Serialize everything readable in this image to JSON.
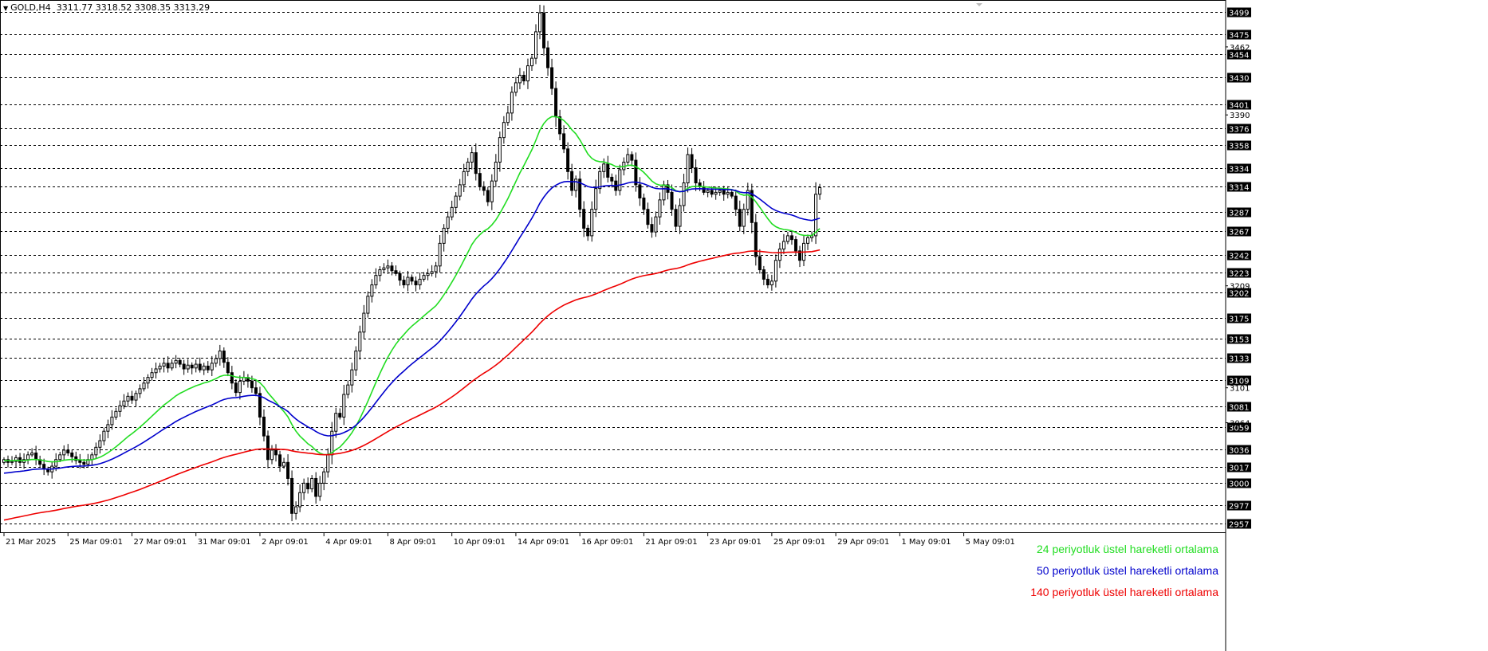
{
  "header": {
    "symbol": "GOLD,H4",
    "ohlc": "3311.77 3318.52 3308.35 3313.29"
  },
  "legend": [
    {
      "label": "24 periyotluk üstel hareketli ortalama",
      "color": "#22dd22"
    },
    {
      "label": "50 periyotluk üstel hareketli ortalama",
      "color": "#0000cc"
    },
    {
      "label": "140 periyotluk üstel hareketli ortalama",
      "color": "#ee0000"
    }
  ],
  "chart_data": {
    "type": "candlestick",
    "title": "",
    "timeframe": "H4",
    "ylim": [
      2948,
      3510
    ],
    "grid": "horizontal dashed at boxed levels",
    "boxed_levels": [
      3499,
      3475,
      3454,
      3430,
      3401,
      3376,
      3358,
      3334,
      3314,
      3287,
      3267,
      3242,
      3223,
      3202,
      3175,
      3153,
      3133,
      3109,
      3081,
      3059,
      3036,
      3017,
      3000,
      2977,
      2957
    ],
    "small_price_labels": [
      3462,
      3390,
      3209,
      3101,
      3064
    ],
    "x_tick_labels": [
      "21 Mar 2025",
      "25 Mar 09:01",
      "27 Mar 09:01",
      "31 Mar 09:01",
      "2 Apr 09:01",
      "4 Apr 09:01",
      "8 Apr 09:01",
      "10 Apr 09:01",
      "14 Apr 09:01",
      "16 Apr 09:01",
      "21 Apr 09:01",
      "23 Apr 09:01",
      "25 Apr 09:01",
      "29 Apr 09:01",
      "1 May 09:01",
      "5 May 09:01"
    ],
    "x_tick_bar_index": [
      0,
      16,
      32,
      48,
      64,
      80,
      96,
      112,
      128,
      144,
      160,
      176,
      192,
      208,
      224,
      240
    ],
    "price_path": [
      3025,
      3022,
      3023,
      3027,
      3022,
      3025,
      3030,
      3032,
      3025,
      3020,
      3015,
      3012,
      3018,
      3025,
      3030,
      3035,
      3032,
      3028,
      3024,
      3022,
      3020,
      3025,
      3030,
      3038,
      3045,
      3055,
      3062,
      3070,
      3076,
      3082,
      3087,
      3092,
      3088,
      3095,
      3100,
      3106,
      3112,
      3117,
      3121,
      3124,
      3127,
      3122,
      3127,
      3130,
      3126,
      3121,
      3125,
      3122,
      3126,
      3120,
      3124,
      3120,
      3127,
      3132,
      3140,
      3128,
      3117,
      3106,
      3096,
      3108,
      3112,
      3108,
      3101,
      3095,
      3070,
      3050,
      3025,
      3035,
      3030,
      3018,
      3022,
      3005,
      2968,
      2975,
      2990,
      3000,
      2994,
      3005,
      2986,
      3000,
      3012,
      3030,
      3055,
      3074,
      3070,
      3094,
      3104,
      3120,
      3140,
      3160,
      3180,
      3198,
      3210,
      3220,
      3226,
      3228,
      3230,
      3225,
      3222,
      3215,
      3210,
      3218,
      3214,
      3210,
      3216,
      3220,
      3222,
      3224,
      3230,
      3254,
      3270,
      3282,
      3292,
      3304,
      3316,
      3330,
      3340,
      3350,
      3328,
      3314,
      3310,
      3298,
      3320,
      3340,
      3366,
      3382,
      3392,
      3414,
      3424,
      3432,
      3426,
      3442,
      3450,
      3478,
      3498,
      3461,
      3440,
      3418,
      3388,
      3370,
      3354,
      3330,
      3310,
      3322,
      3290,
      3270,
      3262,
      3290,
      3312,
      3330,
      3338,
      3324,
      3320,
      3310,
      3332,
      3340,
      3348,
      3342,
      3316,
      3302,
      3290,
      3274,
      3266,
      3282,
      3300,
      3316,
      3308,
      3290,
      3272,
      3294,
      3318,
      3348,
      3334,
      3318,
      3314,
      3308,
      3310,
      3306,
      3308,
      3310,
      3306,
      3308,
      3304,
      3290,
      3272,
      3290,
      3310,
      3276,
      3240,
      3226,
      3216,
      3210,
      3214,
      3236,
      3248,
      3256,
      3262,
      3258,
      3246,
      3236,
      3254,
      3260,
      3262,
      3306,
      3313
    ],
    "series": [
      {
        "name": "24 periyotluk üstel hareketli ortalama",
        "period": 24,
        "color": "#22dd22"
      },
      {
        "name": "50 periyotluk üstel hareketli ortalama",
        "period": 50,
        "color": "#0000cc"
      },
      {
        "name": "140 periyotluk üstel hareketli ortalama",
        "period": 140,
        "color": "#ee0000"
      }
    ]
  }
}
